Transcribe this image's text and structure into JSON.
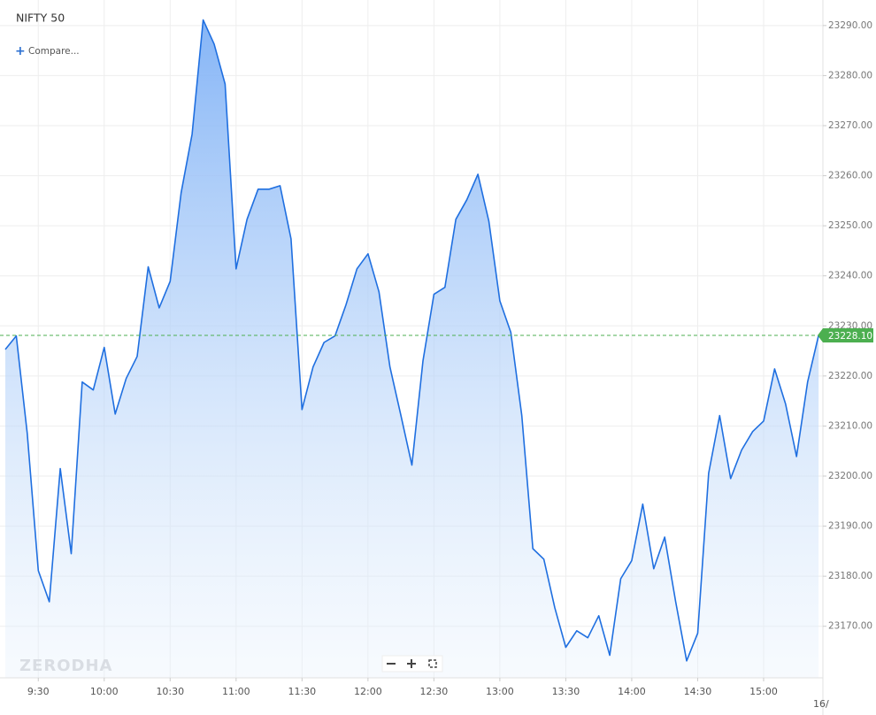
{
  "chart_data": {
    "type": "area",
    "title": "NIFTY 50",
    "compare_label": "Compare...",
    "watermark": "ZERODHA",
    "date_label": "16/",
    "color": "#1f6fe0",
    "grid": true,
    "categories": [
      null,
      null,
      null,
      "9:30",
      null,
      null,
      null,
      null,
      null,
      "10:00",
      null,
      null,
      null,
      null,
      null,
      "10:30",
      null,
      null,
      null,
      null,
      null,
      "11:00",
      null,
      null,
      null,
      null,
      null,
      "11:30",
      null,
      null,
      null,
      null,
      null,
      "12:00",
      null,
      null,
      null,
      null,
      null,
      "12:30",
      null,
      null,
      null,
      null,
      null,
      "13:00",
      null,
      null,
      null,
      null,
      null,
      "13:30",
      null,
      null,
      null,
      null,
      null,
      "14:00",
      null,
      null,
      null,
      null,
      null,
      "14:30",
      null,
      null,
      null,
      null,
      null,
      "15:00",
      null,
      null,
      null,
      null,
      null
    ],
    "values": [
      23225.3,
      23228.0,
      23208.5,
      23181.1,
      23174.9,
      23201.5,
      23184.5,
      23218.8,
      23217.2,
      23225.7,
      23212.4,
      23219.5,
      23223.9,
      23241.8,
      23233.6,
      23238.9,
      23256.6,
      23268.3,
      23291.1,
      23286.3,
      23278.3,
      23241.4,
      23251.3,
      23257.3,
      23257.3,
      23258.0,
      23247.4,
      23213.3,
      23221.8,
      23226.7,
      23228.0,
      23234.2,
      23241.4,
      23244.4,
      23236.8,
      23221.8,
      23212.1,
      23202.2,
      23223.0,
      23236.3,
      23237.7,
      23251.3,
      23255.2,
      23260.3,
      23250.9,
      23235.0,
      23228.7,
      23212.1,
      23185.5,
      23183.4,
      23173.7,
      23165.8,
      23169.1,
      23167.7,
      23172.1,
      23164.2,
      23179.5,
      23183.1,
      23194.4,
      23181.5,
      23187.8,
      23174.9,
      23163.1,
      23168.6,
      23200.6,
      23212.1,
      23199.5,
      23205.2,
      23208.9,
      23211.0,
      23221.4,
      23214.4,
      23203.9,
      23218.8,
      23228.1
    ],
    "last_price": {
      "value": 23228.1,
      "label": "23228.10",
      "color": "#4caf50"
    },
    "ylim": [
      23159.7,
      23295.1
    ],
    "yticks": [
      {
        "value": 23170,
        "label": "23170.00"
      },
      {
        "value": 23180,
        "label": "23180.00"
      },
      {
        "value": 23190,
        "label": "23190.00"
      },
      {
        "value": 23200,
        "label": "23200.00"
      },
      {
        "value": 23210,
        "label": "23210.00"
      },
      {
        "value": 23220,
        "label": "23220.00"
      },
      {
        "value": 23230,
        "label": "23230.00"
      },
      {
        "value": 23240,
        "label": "23240.00"
      },
      {
        "value": 23250,
        "label": "23250.00"
      },
      {
        "value": 23260,
        "label": "23260.00"
      },
      {
        "value": 23270,
        "label": "23270.00"
      },
      {
        "value": 23280,
        "label": "23280.00"
      },
      {
        "value": 23290,
        "label": "23290.00"
      }
    ]
  }
}
